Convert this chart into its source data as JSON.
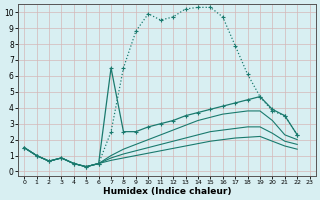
{
  "xlabel": "Humidex (Indice chaleur)",
  "xlim_min": -0.5,
  "xlim_max": 23.5,
  "ylim_min": -0.3,
  "ylim_max": 10.5,
  "xticks": [
    0,
    1,
    2,
    3,
    4,
    5,
    6,
    7,
    8,
    9,
    10,
    11,
    12,
    13,
    14,
    15,
    16,
    17,
    18,
    19,
    20,
    21,
    22,
    23
  ],
  "yticks": [
    0,
    1,
    2,
    3,
    4,
    5,
    6,
    7,
    8,
    9,
    10
  ],
  "bg_color": "#d8eff2",
  "grid_color": "#d4b8b8",
  "line_color": "#1a7a6e",
  "series": [
    {
      "x": [
        0,
        1,
        2,
        3,
        4,
        5,
        6,
        7,
        8,
        9,
        10,
        11,
        12,
        13,
        14,
        15,
        16,
        17,
        18,
        19,
        20,
        21,
        22
      ],
      "y": [
        1.5,
        1.0,
        0.65,
        0.85,
        0.5,
        0.3,
        0.5,
        2.5,
        6.5,
        8.8,
        9.9,
        9.5,
        9.7,
        10.2,
        10.3,
        10.3,
        9.7,
        7.9,
        6.1,
        4.7,
        3.8,
        3.5,
        2.3
      ],
      "style": "dotted",
      "marker": "+"
    },
    {
      "x": [
        0,
        1,
        2,
        3,
        4,
        5,
        6,
        7,
        8,
        9,
        10,
        11,
        12,
        13,
        14,
        15,
        16,
        17,
        18,
        19,
        20,
        21,
        22
      ],
      "y": [
        1.5,
        1.0,
        0.65,
        0.85,
        0.5,
        0.3,
        0.5,
        6.5,
        2.5,
        2.5,
        2.8,
        3.0,
        3.2,
        3.5,
        3.7,
        3.9,
        4.1,
        4.3,
        4.5,
        4.7,
        3.9,
        3.5,
        2.3
      ],
      "style": "solid",
      "marker": "+"
    },
    {
      "x": [
        0,
        1,
        2,
        3,
        4,
        5,
        6,
        7,
        8,
        9,
        10,
        11,
        12,
        13,
        14,
        15,
        16,
        17,
        18,
        19,
        20,
        21,
        22
      ],
      "y": [
        1.5,
        1.0,
        0.65,
        0.85,
        0.5,
        0.3,
        0.5,
        1.0,
        1.4,
        1.7,
        2.0,
        2.3,
        2.6,
        2.9,
        3.2,
        3.4,
        3.6,
        3.7,
        3.8,
        3.8,
        3.2,
        2.3,
        2.0
      ],
      "style": "solid",
      "marker": null
    },
    {
      "x": [
        0,
        1,
        2,
        3,
        4,
        5,
        6,
        7,
        8,
        9,
        10,
        11,
        12,
        13,
        14,
        15,
        16,
        17,
        18,
        19,
        20,
        21,
        22
      ],
      "y": [
        1.5,
        1.0,
        0.65,
        0.85,
        0.5,
        0.3,
        0.5,
        0.85,
        1.1,
        1.3,
        1.5,
        1.7,
        1.9,
        2.1,
        2.3,
        2.5,
        2.6,
        2.7,
        2.8,
        2.8,
        2.4,
        1.9,
        1.7
      ],
      "style": "solid",
      "marker": null
    },
    {
      "x": [
        0,
        1,
        2,
        3,
        4,
        5,
        6,
        7,
        8,
        9,
        10,
        11,
        12,
        13,
        14,
        15,
        16,
        17,
        18,
        19,
        20,
        21,
        22
      ],
      "y": [
        1.5,
        1.0,
        0.65,
        0.85,
        0.5,
        0.3,
        0.5,
        0.7,
        0.85,
        1.0,
        1.15,
        1.3,
        1.45,
        1.6,
        1.75,
        1.9,
        2.0,
        2.1,
        2.15,
        2.2,
        1.9,
        1.6,
        1.4
      ],
      "style": "solid",
      "marker": null
    }
  ]
}
